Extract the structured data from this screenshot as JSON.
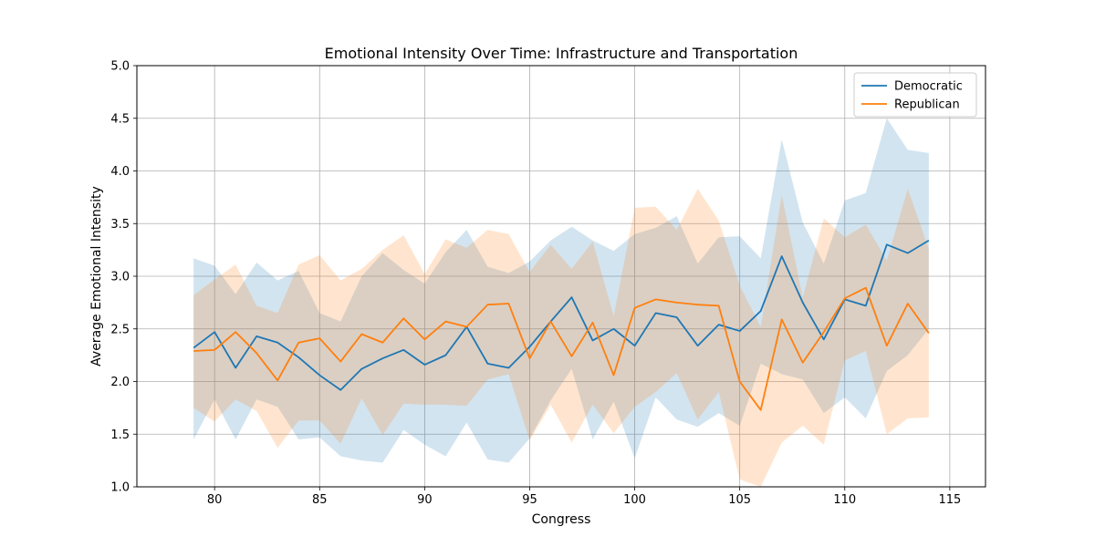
{
  "chart_data": {
    "type": "line",
    "title": "Emotional Intensity Over Time: Infrastructure and Transportation",
    "xlabel": "Congress",
    "ylabel": "Average Emotional Intensity",
    "xlim": [
      76.3,
      116.7
    ],
    "ylim": [
      1.0,
      5.0
    ],
    "xticks": [
      80,
      85,
      90,
      95,
      100,
      105,
      110,
      115
    ],
    "yticks": [
      1.0,
      1.5,
      2.0,
      2.5,
      3.0,
      3.5,
      4.0,
      4.5,
      5.0
    ],
    "grid": true,
    "legend_position": "top-right",
    "x": [
      79,
      80,
      81,
      82,
      83,
      84,
      85,
      86,
      87,
      88,
      89,
      90,
      91,
      92,
      93,
      94,
      95,
      96,
      97,
      98,
      99,
      100,
      101,
      102,
      103,
      104,
      105,
      106,
      107,
      108,
      109,
      110,
      111,
      112,
      113,
      114
    ],
    "series": [
      {
        "name": "Democratic",
        "color": "#1f77b4",
        "values": [
          2.32,
          2.47,
          2.13,
          2.43,
          2.37,
          2.23,
          2.06,
          1.92,
          2.12,
          2.22,
          2.3,
          2.16,
          2.25,
          2.52,
          2.17,
          2.13,
          2.33,
          2.57,
          2.8,
          2.39,
          2.5,
          2.34,
          2.65,
          2.61,
          2.34,
          2.54,
          2.48,
          2.67,
          3.19,
          2.75,
          2.4,
          2.78,
          2.72,
          3.3,
          3.22,
          3.34
        ],
        "upper": [
          3.17,
          3.1,
          2.83,
          3.13,
          2.96,
          3.05,
          2.65,
          2.57,
          3.0,
          3.22,
          3.06,
          2.93,
          3.23,
          3.44,
          3.09,
          3.03,
          3.14,
          3.34,
          3.47,
          3.34,
          3.24,
          3.4,
          3.46,
          3.57,
          3.12,
          3.37,
          3.38,
          3.17,
          4.3,
          3.51,
          3.12,
          3.72,
          3.79,
          4.5,
          4.2,
          4.17
        ],
        "lower": [
          1.45,
          1.83,
          1.45,
          1.83,
          1.76,
          1.45,
          1.47,
          1.29,
          1.25,
          1.23,
          1.54,
          1.4,
          1.29,
          1.61,
          1.26,
          1.23,
          1.46,
          1.82,
          2.12,
          1.45,
          1.81,
          1.27,
          1.85,
          1.64,
          1.57,
          1.7,
          1.58,
          2.17,
          2.07,
          2.02,
          1.7,
          1.85,
          1.65,
          2.1,
          2.25,
          2.5
        ]
      },
      {
        "name": "Republican",
        "color": "#ff7f0e",
        "values": [
          2.29,
          2.3,
          2.47,
          2.27,
          2.01,
          2.37,
          2.41,
          2.19,
          2.45,
          2.37,
          2.6,
          2.4,
          2.57,
          2.52,
          2.73,
          2.74,
          2.22,
          2.57,
          2.24,
          2.56,
          2.06,
          2.7,
          2.78,
          2.75,
          2.73,
          2.72,
          2.0,
          1.73,
          2.59,
          2.18,
          2.47,
          2.79,
          2.89,
          2.34,
          2.74,
          2.46
        ],
        "upper": [
          2.82,
          2.97,
          3.11,
          2.72,
          2.65,
          3.11,
          3.2,
          2.96,
          3.07,
          3.25,
          3.39,
          3.02,
          3.35,
          3.27,
          3.44,
          3.4,
          3.04,
          3.3,
          3.07,
          3.33,
          2.62,
          3.65,
          3.66,
          3.44,
          3.83,
          3.53,
          2.91,
          2.52,
          3.77,
          2.8,
          3.55,
          3.37,
          3.49,
          3.15,
          3.83,
          3.26
        ],
        "lower": [
          1.75,
          1.62,
          1.83,
          1.72,
          1.37,
          1.63,
          1.63,
          1.41,
          1.84,
          1.49,
          1.79,
          1.78,
          1.78,
          1.77,
          2.02,
          2.07,
          1.44,
          1.78,
          1.42,
          1.78,
          1.51,
          1.76,
          1.9,
          2.08,
          1.64,
          1.9,
          1.07,
          1.0,
          1.42,
          1.58,
          1.4,
          2.2,
          2.29,
          1.5,
          1.65,
          1.66
        ]
      }
    ]
  }
}
